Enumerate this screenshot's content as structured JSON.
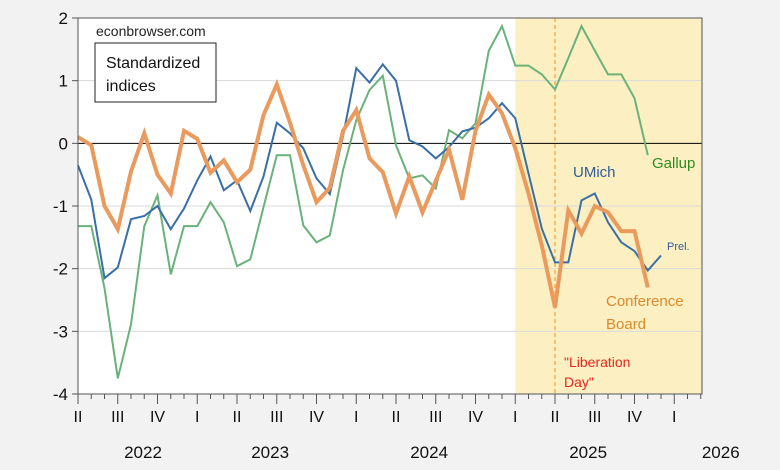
{
  "chart_data": {
    "type": "line",
    "watermark": "econbrowser.com",
    "title": "Standardized indices",
    "title_lines": [
      "Standardized",
      "indices"
    ],
    "ylim": [
      -4,
      2
    ],
    "yticks": [
      "2",
      "1",
      "0",
      "-1",
      "-2",
      "-3",
      "-4"
    ],
    "ytick_values": [
      2,
      1,
      0,
      -1,
      -2,
      -3,
      -4
    ],
    "x_start": "2022-04",
    "x_months": 49,
    "quarter_labels": [
      "II",
      "III",
      "IV",
      "I",
      "II",
      "III",
      "IV",
      "I",
      "II",
      "III",
      "IV",
      "I",
      "II",
      "III",
      "IV",
      "I"
    ],
    "year_labels": [
      "2022",
      "2023",
      "2024",
      "2025",
      "2026"
    ],
    "shaded_region": {
      "from": "2025-01",
      "to": "2026-04",
      "color": "#fcf0c2"
    },
    "vline": {
      "at": "2025-04",
      "label_lines": [
        "\"Liberation",
        "Day\""
      ],
      "color": "#f39019"
    },
    "grid": true,
    "series": [
      {
        "name": "Gallup",
        "label": "Gallup",
        "color": "#6ab27a",
        "label_color": "#2e8b22",
        "values": [
          -1.32,
          -1.32,
          -2.31,
          -3.75,
          -2.89,
          -1.32,
          -0.83,
          -2.09,
          -1.32,
          -1.32,
          -0.94,
          -1.26,
          -1.96,
          -1.85,
          -1.02,
          -0.19,
          -0.19,
          -1.31,
          -1.58,
          -1.47,
          -0.43,
          0.37,
          0.85,
          1.08,
          -0.03,
          -0.56,
          -0.51,
          -0.72,
          0.21,
          0.08,
          0.32,
          1.48,
          1.87,
          1.24,
          1.24,
          1.1,
          0.86,
          1.36,
          1.87,
          1.48,
          1.1,
          1.1,
          0.72,
          -0.19
        ]
      },
      {
        "name": "UMich",
        "label": "UMich",
        "color": "#3a6ea5",
        "label_color": "#2f5c9a",
        "note": "Prel.",
        "values": [
          -0.35,
          -0.9,
          -2.15,
          -1.98,
          -1.21,
          -1.16,
          -1.0,
          -1.37,
          -1.04,
          -0.59,
          -0.21,
          -0.75,
          -0.59,
          -1.08,
          -0.53,
          0.33,
          0.16,
          -0.08,
          -0.56,
          -0.81,
          0.11,
          1.2,
          0.97,
          1.26,
          1.0,
          0.05,
          -0.05,
          -0.24,
          -0.06,
          0.19,
          0.25,
          0.4,
          0.64,
          0.4,
          -0.48,
          -1.36,
          -1.9,
          -1.9,
          -0.91,
          -0.8,
          -1.26,
          -1.58,
          -1.72,
          -2.03,
          -1.79
        ]
      },
      {
        "name": "Conference Board",
        "label_lines": [
          "Conference",
          "Board"
        ],
        "color": "#ea9a5c",
        "label_color": "#d98a2c",
        "values": [
          0.1,
          -0.03,
          -1.0,
          -1.37,
          -0.45,
          0.16,
          -0.5,
          -0.8,
          0.2,
          0.07,
          -0.47,
          -0.27,
          -0.62,
          -0.42,
          0.45,
          0.94,
          0.33,
          -0.35,
          -0.94,
          -0.71,
          0.2,
          0.53,
          -0.24,
          -0.46,
          -1.12,
          -0.53,
          -1.1,
          -0.6,
          -0.1,
          -0.9,
          0.2,
          0.78,
          0.48,
          -0.08,
          -0.8,
          -1.63,
          -2.62,
          -1.07,
          -1.44,
          -1.0,
          -1.1,
          -1.4,
          -1.4,
          -2.3
        ]
      }
    ]
  }
}
